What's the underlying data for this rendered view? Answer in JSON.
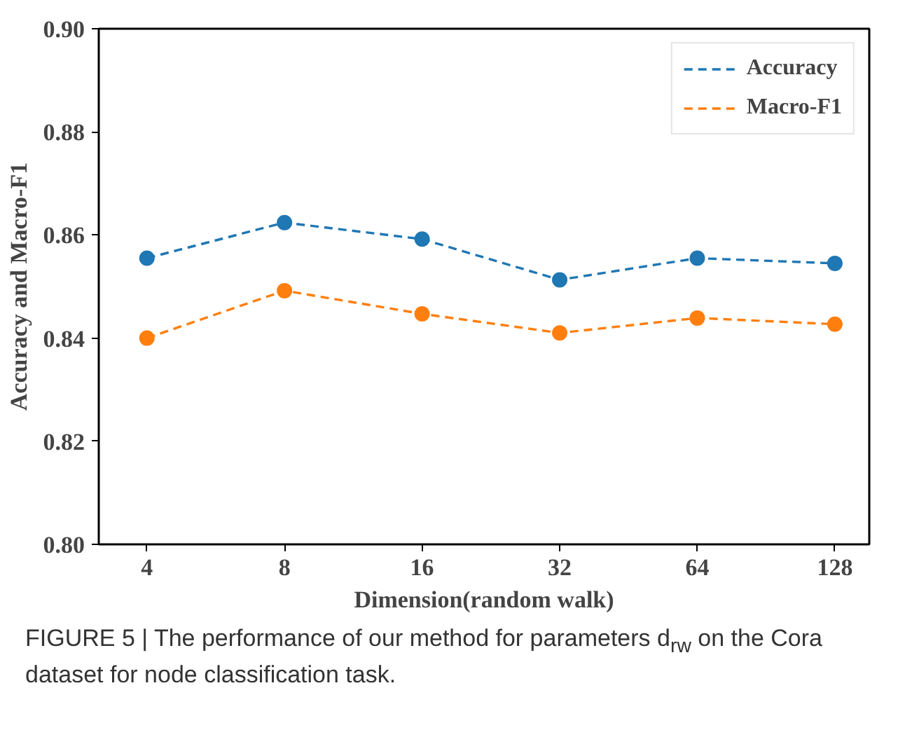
{
  "chart_data": {
    "type": "line",
    "xlabel": "Dimension(random walk)",
    "ylabel": "Accuracy and Macro-F1",
    "categories": [
      "4",
      "8",
      "16",
      "32",
      "64",
      "128"
    ],
    "series": [
      {
        "name": "Accuracy",
        "color": "#1f77b4",
        "values": [
          0.8555,
          0.8624,
          0.8592,
          0.8513,
          0.8555,
          0.8545
        ]
      },
      {
        "name": "Macro-F1",
        "color": "#ff7f0e",
        "values": [
          0.84,
          0.8492,
          0.8447,
          0.841,
          0.8439,
          0.8427
        ]
      }
    ],
    "ylim": [
      0.8,
      0.9
    ],
    "yticks": [
      {
        "value": 0.8,
        "label": "0.80"
      },
      {
        "value": 0.82,
        "label": "0.82"
      },
      {
        "value": 0.84,
        "label": "0.84"
      },
      {
        "value": 0.86,
        "label": "0.86"
      },
      {
        "value": 0.88,
        "label": "0.88"
      },
      {
        "value": 0.9,
        "label": "0.90"
      }
    ],
    "grid": false,
    "legend": "top right",
    "marker": "circle",
    "line_style": "dashed",
    "annotations": [
      "FIGURE 5 | The performance of our method for parameters d$_{rw}$ on the Cora dataset for node classification task."
    ]
  }
}
